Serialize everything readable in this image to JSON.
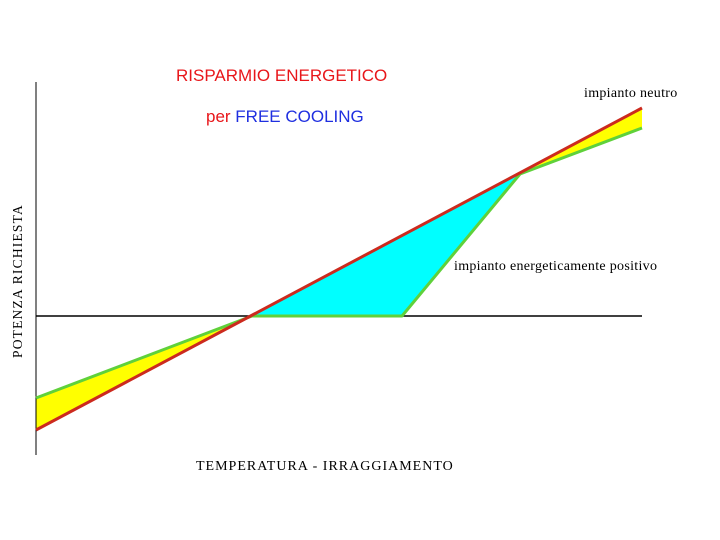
{
  "title": {
    "line1": "RISPARMIO ENERGETICO",
    "line2_prefix": "per ",
    "line2_highlight": "FREE COOLING"
  },
  "labels": {
    "neutral": "impianto neutro",
    "positive": "impianto energeticamente positivo",
    "x_axis": "TEMPERATURA - IRRAGGIAMENTO",
    "y_axis": "POTENZA RICHIESTA"
  },
  "colors": {
    "title_red": "#e8161a",
    "title_blue": "#1f2fe0",
    "required_power_line": "#cc2a1e",
    "supplied_power_line": "#5fd13a",
    "loss_area": "#ffff00",
    "saving_area": "#00ffff",
    "axis": "#000000"
  }
}
